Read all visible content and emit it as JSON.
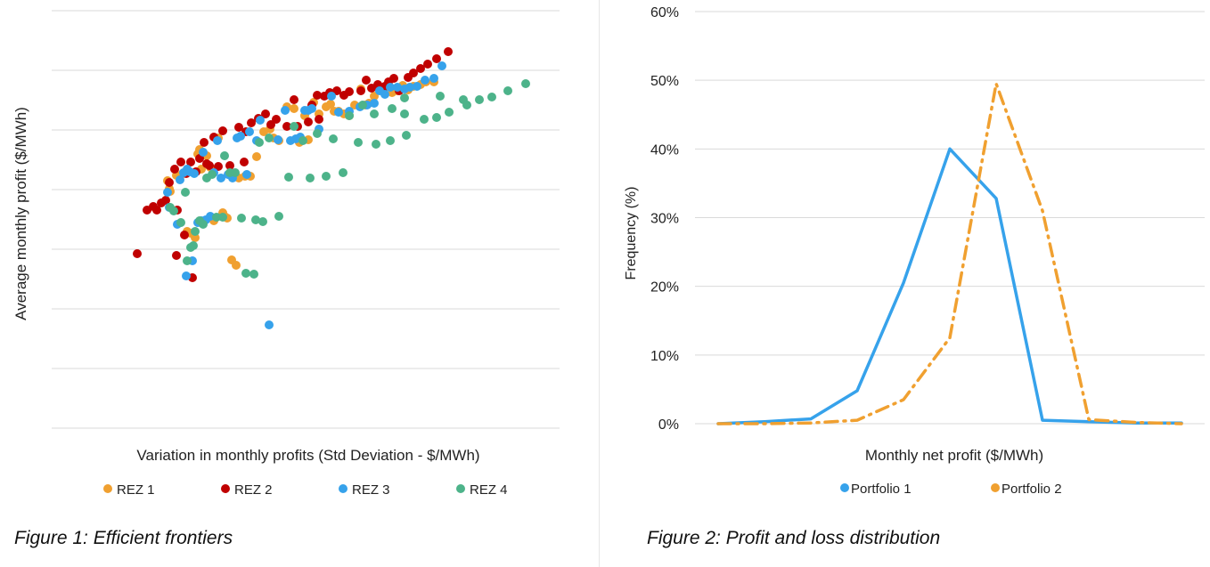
{
  "figure1": {
    "caption": "Figure 1: Efficient frontiers",
    "chart_data": {
      "type": "scatter",
      "xlabel": "Variation in monthly profits (Std Deviation - $/MWh)",
      "ylabel": "Average monthly profit ($/MWh)",
      "grid": true,
      "legend_position": "bottom",
      "series": [
        {
          "name": "REZ 1",
          "color": "#F0A030",
          "points": [
            [
              188,
              203
            ],
            [
              190,
              212
            ],
            [
              191,
              215
            ],
            [
              198,
              197
            ],
            [
              205,
              195
            ],
            [
              210,
              260
            ],
            [
              214,
              262
            ],
            [
              219,
              267
            ],
            [
              222,
              173
            ],
            [
              224,
              168
            ],
            [
              226,
              190
            ],
            [
              232,
              175
            ],
            [
              236,
              188
            ],
            [
              240,
              248
            ],
            [
              245,
              155
            ],
            [
              250,
              239
            ],
            [
              252,
              243
            ],
            [
              255,
              245
            ],
            [
              258,
              195
            ],
            [
              260,
              292
            ],
            [
              265,
              298
            ],
            [
              268,
              200
            ],
            [
              275,
              198
            ],
            [
              281,
              198
            ],
            [
              288,
              176
            ],
            [
              296,
              148
            ],
            [
              303,
              145
            ],
            [
              307,
              155
            ],
            [
              313,
              158
            ],
            [
              322,
              120
            ],
            [
              330,
              122
            ],
            [
              336,
              160
            ],
            [
              342,
              130
            ],
            [
              346,
              157
            ],
            [
              352,
              115
            ],
            [
              358,
              128
            ],
            [
              366,
              120
            ],
            [
              371,
              117
            ],
            [
              375,
              125
            ],
            [
              380,
              125
            ],
            [
              386,
              128
            ],
            [
              392,
              130
            ],
            [
              398,
              118
            ],
            [
              405,
              100
            ],
            [
              410,
              118
            ],
            [
              414,
              116
            ],
            [
              420,
              108
            ],
            [
              427,
              99
            ],
            [
              432,
              98
            ],
            [
              440,
              104
            ],
            [
              446,
              102
            ],
            [
              452,
              96
            ],
            [
              458,
              101
            ],
            [
              464,
              97
            ],
            [
              472,
              95
            ],
            [
              478,
              92
            ],
            [
              487,
              92
            ]
          ]
        },
        {
          "name": "REZ 2",
          "color": "#C00000",
          "points": [
            [
              154,
              285
            ],
            [
              165,
              236
            ],
            [
              172,
              232
            ],
            [
              176,
              236
            ],
            [
              181,
              228
            ],
            [
              186,
              225
            ],
            [
              190,
              205
            ],
            [
              196,
              190
            ],
            [
              199,
              236
            ],
            [
              198,
              287
            ],
            [
              203,
              182
            ],
            [
              207,
              264
            ],
            [
              209,
              195
            ],
            [
              214,
              182
            ],
            [
              216,
              312
            ],
            [
              220,
              193
            ],
            [
              224,
              178
            ],
            [
              229,
              160
            ],
            [
              232,
              184
            ],
            [
              235,
              186
            ],
            [
              240,
              154
            ],
            [
              245,
              187
            ],
            [
              250,
              147
            ],
            [
              258,
              186
            ],
            [
              268,
              143
            ],
            [
              274,
              182
            ],
            [
              276,
              148
            ],
            [
              282,
              138
            ],
            [
              290,
              133
            ],
            [
              298,
              128
            ],
            [
              304,
              140
            ],
            [
              310,
              134
            ],
            [
              322,
              142
            ],
            [
              330,
              112
            ],
            [
              334,
              142
            ],
            [
              346,
              137
            ],
            [
              350,
              118
            ],
            [
              356,
              107
            ],
            [
              358,
              134
            ],
            [
              364,
              108
            ],
            [
              370,
              104
            ],
            [
              378,
              102
            ],
            [
              386,
              107
            ],
            [
              392,
              103
            ],
            [
              405,
              102
            ],
            [
              411,
              90
            ],
            [
              417,
              99
            ],
            [
              424,
              95
            ],
            [
              432,
              97
            ],
            [
              436,
              92
            ],
            [
              442,
              88
            ],
            [
              448,
              102
            ],
            [
              458,
              87
            ],
            [
              464,
              82
            ],
            [
              472,
              77
            ],
            [
              480,
              72
            ],
            [
              490,
              66
            ],
            [
              503,
              58
            ]
          ]
        },
        {
          "name": "REZ 3",
          "color": "#36A2EB",
          "points": [
            [
              188,
              216
            ],
            [
              190,
              233
            ],
            [
              199,
              252
            ],
            [
              202,
              202
            ],
            [
              206,
              194
            ],
            [
              209,
              310
            ],
            [
              210,
              190
            ],
            [
              213,
              193
            ],
            [
              216,
              293
            ],
            [
              218,
              195
            ],
            [
              222,
              250
            ],
            [
              226,
              248
            ],
            [
              228,
              171
            ],
            [
              231,
              247
            ],
            [
              236,
              243
            ],
            [
              240,
              194
            ],
            [
              244,
              158
            ],
            [
              248,
              200
            ],
            [
              256,
              196
            ],
            [
              261,
              200
            ],
            [
              266,
              155
            ],
            [
              270,
              153
            ],
            [
              277,
              196
            ],
            [
              280,
              148
            ],
            [
              288,
              158
            ],
            [
              292,
              135
            ],
            [
              302,
              365
            ],
            [
              312,
              157
            ],
            [
              320,
              124
            ],
            [
              326,
              158
            ],
            [
              332,
              156
            ],
            [
              337,
              154
            ],
            [
              342,
              124
            ],
            [
              346,
              124
            ],
            [
              350,
              122
            ],
            [
              358,
              145
            ],
            [
              372,
              108
            ],
            [
              380,
              126
            ],
            [
              392,
              125
            ],
            [
              404,
              120
            ],
            [
              412,
              118
            ],
            [
              420,
              116
            ],
            [
              426,
              102
            ],
            [
              432,
              106
            ],
            [
              438,
              98
            ],
            [
              446,
              98
            ],
            [
              454,
              100
            ],
            [
              460,
              98
            ],
            [
              468,
              97
            ],
            [
              477,
              90
            ],
            [
              487,
              88
            ],
            [
              496,
              74
            ]
          ]
        },
        {
          "name": "REZ 4",
          "color": "#4DB38A",
          "points": [
            [
              191,
              233
            ],
            [
              195,
              237
            ],
            [
              203,
              250
            ],
            [
              208,
              216
            ],
            [
              210,
              293
            ],
            [
              214,
              278
            ],
            [
              217,
              276
            ],
            [
              219,
              260
            ],
            [
              224,
              248
            ],
            [
              228,
              252
            ],
            [
              232,
              200
            ],
            [
              238,
              196
            ],
            [
              243,
              244
            ],
            [
              250,
              244
            ],
            [
              252,
              175
            ],
            [
              258,
              194
            ],
            [
              264,
              194
            ],
            [
              271,
              245
            ],
            [
              276,
              307
            ],
            [
              285,
              308
            ],
            [
              287,
              247
            ],
            [
              291,
              160
            ],
            [
              295,
              249
            ],
            [
              302,
              155
            ],
            [
              313,
              243
            ],
            [
              324,
              199
            ],
            [
              330,
              142
            ],
            [
              340,
              158
            ],
            [
              348,
              200
            ],
            [
              356,
              150
            ],
            [
              366,
              198
            ],
            [
              374,
              156
            ],
            [
              385,
              194
            ],
            [
              392,
              130
            ],
            [
              402,
              160
            ],
            [
              407,
              118
            ],
            [
              420,
              128
            ],
            [
              422,
              162
            ],
            [
              438,
              158
            ],
            [
              440,
              122
            ],
            [
              454,
              110
            ],
            [
              454,
              128
            ],
            [
              456,
              152
            ],
            [
              476,
              134
            ],
            [
              490,
              132
            ],
            [
              494,
              108
            ],
            [
              504,
              126
            ],
            [
              520,
              112
            ],
            [
              524,
              118
            ],
            [
              538,
              112
            ],
            [
              552,
              109
            ],
            [
              570,
              102
            ],
            [
              590,
              94
            ]
          ]
        }
      ]
    }
  },
  "figure2": {
    "caption": "Figure 2: Profit and loss distribution",
    "chart_data": {
      "type": "line",
      "xlabel": "Monthly net profit ($/MWh)",
      "ylabel": "Frequency (%)",
      "yticks": [
        "0%",
        "10%",
        "20%",
        "30%",
        "40%",
        "50%",
        "60%"
      ],
      "ylim": [
        0,
        60
      ],
      "grid": true,
      "legend_position": "bottom",
      "series": [
        {
          "name": "Portfolio 1",
          "color": "#36A2EB",
          "style": "solid",
          "values": [
            0,
            0.3,
            0.7,
            4.8,
            20.5,
            40.0,
            32.8,
            0.5,
            0.3,
            0.1,
            0.1
          ]
        },
        {
          "name": "Portfolio 2",
          "color": "#F0A030",
          "style": "dash-dot",
          "values": [
            0,
            0,
            0.1,
            0.5,
            3.5,
            12.5,
            49.5,
            31.0,
            0.6,
            0.2,
            0
          ]
        }
      ]
    }
  }
}
